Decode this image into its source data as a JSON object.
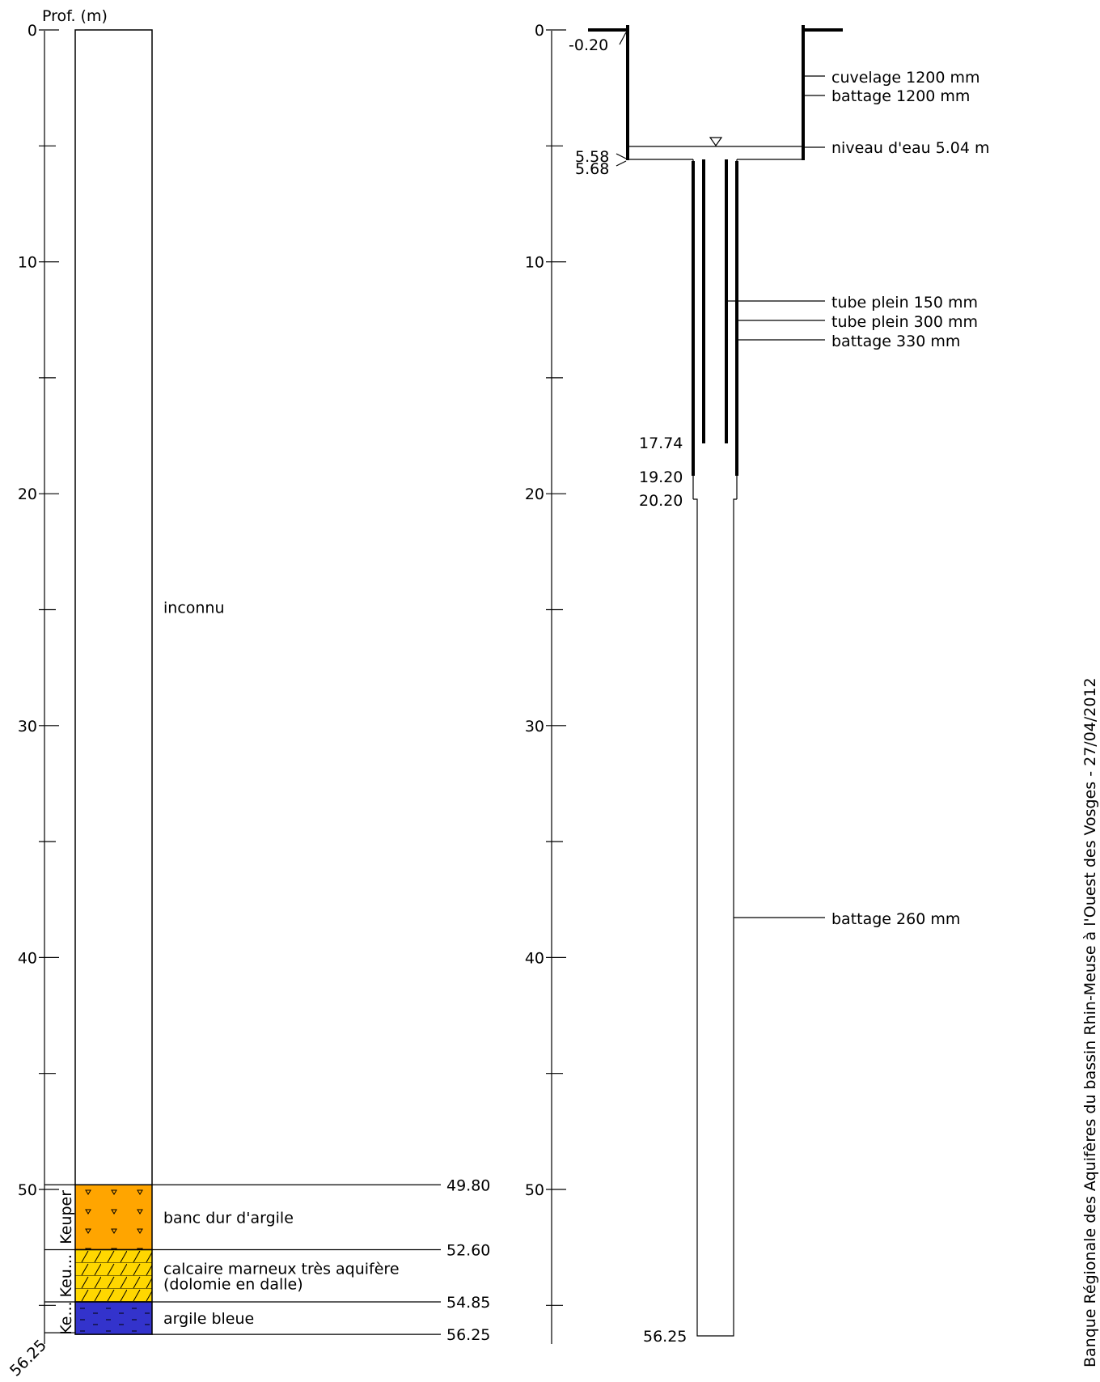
{
  "depth_axis": {
    "title": "Prof. (m)",
    "ticks": [
      0,
      10,
      20,
      30,
      40,
      50
    ],
    "bottom_label": "56.25",
    "max_depth": 56.25
  },
  "lithology": [
    {
      "top": 0,
      "bottom": 49.8,
      "description": "inconnu",
      "color": "#ffffff",
      "pattern": "none",
      "stage": ""
    },
    {
      "top": 49.8,
      "bottom": 52.6,
      "description": "banc dur d'argile",
      "color": "#ffa500",
      "pattern": "triangles",
      "stage": "Keuper"
    },
    {
      "top": 52.6,
      "bottom": 54.85,
      "description": "calcaire marneux très aquifère\n (dolomie en dalle)",
      "color": "#ffd700",
      "pattern": "limestone",
      "stage": "Keu..."
    },
    {
      "top": 54.85,
      "bottom": 56.25,
      "description": "argile bleue",
      "color": "#3333cc",
      "pattern": "dashes",
      "stage": "Ke..."
    }
  ],
  "boundary_labels": [
    "49.80",
    "52.60",
    "54.85",
    "56.25"
  ],
  "equipment": {
    "depth_labels": {
      "top": "-0.20",
      "casing_bottom_a": "5.58",
      "casing_bottom_b": "5.68",
      "inner_tube": "17.74",
      "outer_tube": "19.20",
      "step": "20.20",
      "bottom": "56.25"
    },
    "annotations": [
      {
        "text": "cuvelage 1200 mm",
        "depth": 1.95
      },
      {
        "text": "battage 1200 mm",
        "depth": 2.8
      },
      {
        "text": "niveau d'eau 5.04 m",
        "depth": 5.04
      },
      {
        "text": "tube plein 150 mm",
        "depth": 11.7
      },
      {
        "text": "tube plein 300 mm",
        "depth": 12.55
      },
      {
        "text": "battage 330 mm",
        "depth": 13.4
      },
      {
        "text": "battage 260 mm",
        "depth": 38.3
      }
    ]
  },
  "footer_text": "Banque Régionale des Aquifères du bassin Rhin-Meuse à l'Ouest des Vosges - 27/04/2012"
}
